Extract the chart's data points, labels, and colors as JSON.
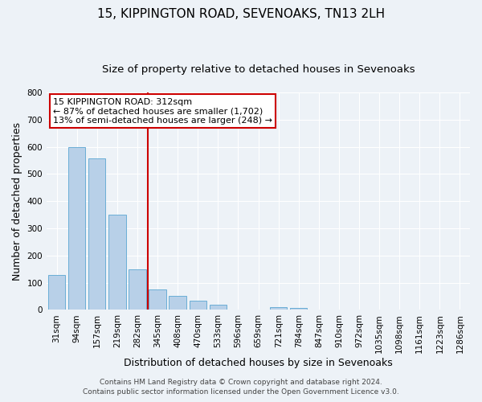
{
  "title": "15, KIPPINGTON ROAD, SEVENOAKS, TN13 2LH",
  "subtitle": "Size of property relative to detached houses in Sevenoaks",
  "xlabel": "Distribution of detached houses by size in Sevenoaks",
  "ylabel": "Number of detached properties",
  "bar_labels": [
    "31sqm",
    "94sqm",
    "157sqm",
    "219sqm",
    "282sqm",
    "345sqm",
    "408sqm",
    "470sqm",
    "533sqm",
    "596sqm",
    "659sqm",
    "721sqm",
    "784sqm",
    "847sqm",
    "910sqm",
    "972sqm",
    "1035sqm",
    "1098sqm",
    "1161sqm",
    "1223sqm",
    "1286sqm"
  ],
  "bar_values": [
    128,
    600,
    557,
    350,
    150,
    75,
    50,
    35,
    18,
    0,
    0,
    10,
    8,
    0,
    0,
    0,
    0,
    0,
    0,
    0,
    0
  ],
  "bar_color": "#b8d0e8",
  "bar_edge_color": "#6aaed6",
  "annotation_title": "15 KIPPINGTON ROAD: 312sqm",
  "annotation_line1": "← 87% of detached houses are smaller (1,702)",
  "annotation_line2": "13% of semi-detached houses are larger (248) →",
  "annotation_box_color": "#ffffff",
  "annotation_box_edge": "#cc0000",
  "red_line_color": "#cc0000",
  "ylim": [
    0,
    800
  ],
  "yticks": [
    0,
    100,
    200,
    300,
    400,
    500,
    600,
    700,
    800
  ],
  "footer1": "Contains HM Land Registry data © Crown copyright and database right 2024.",
  "footer2": "Contains public sector information licensed under the Open Government Licence v3.0.",
  "bg_color": "#edf2f7",
  "grid_color": "#ffffff",
  "title_fontsize": 11,
  "subtitle_fontsize": 9.5,
  "xlabel_fontsize": 9,
  "ylabel_fontsize": 9,
  "tick_fontsize": 7.5,
  "annot_fontsize": 8,
  "footer_fontsize": 6.5
}
